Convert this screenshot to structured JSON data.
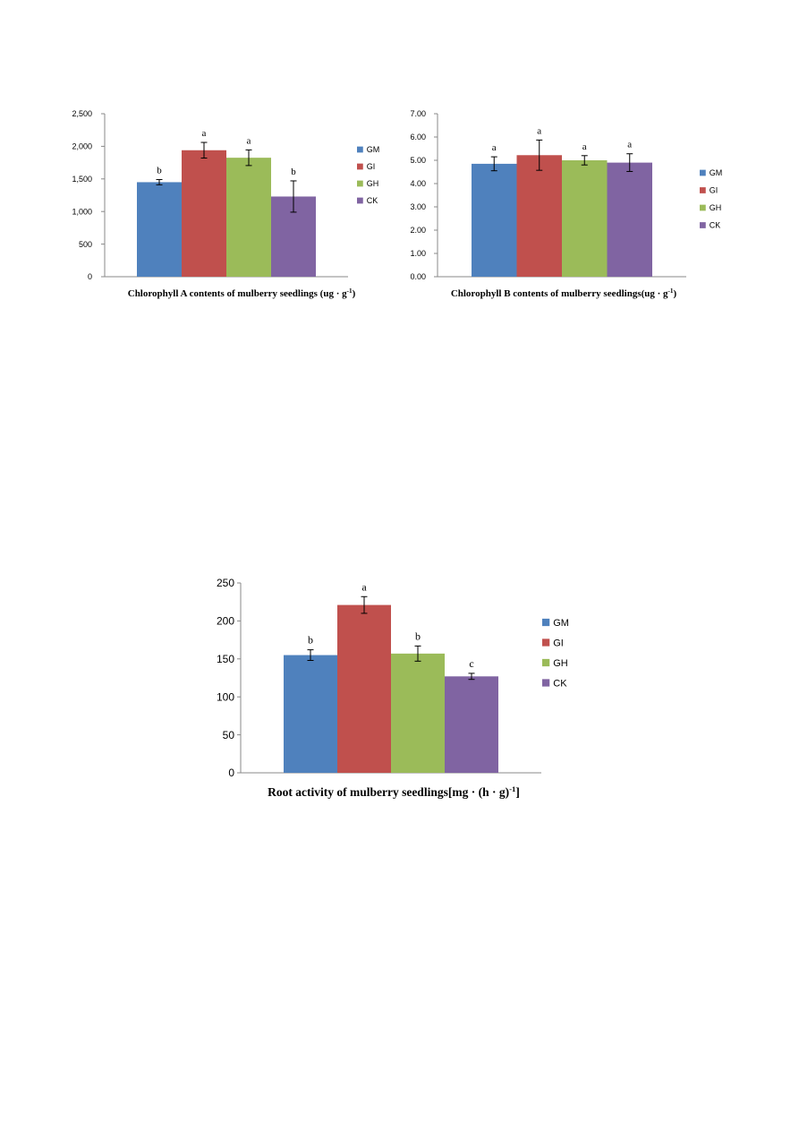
{
  "charts": [
    {
      "type": "bar",
      "title": "Chlorophyll A contents of mulberry seedlings (ug · g",
      "title_sup": "-1",
      "title_end": ")",
      "ylim": [
        0,
        2500
      ],
      "yticks": [
        0,
        500,
        1000,
        1500,
        2000,
        2500
      ],
      "ytick_labels": [
        "0",
        "500",
        "1,000",
        "1,500",
        "2,000",
        "2,500"
      ],
      "series": [
        {
          "name": "GM",
          "value": 1450,
          "error": 40,
          "letter": "b",
          "color": "#4f81bd"
        },
        {
          "name": "GI",
          "value": 1940,
          "error": 120,
          "letter": "a",
          "color": "#c0504d"
        },
        {
          "name": "GH",
          "value": 1825,
          "error": 120,
          "letter": "a",
          "color": "#9bbb59"
        },
        {
          "name": "CK",
          "value": 1230,
          "error": 240,
          "letter": "b",
          "color": "#8064a2"
        }
      ]
    },
    {
      "type": "bar",
      "title": "Chlorophyll B contents of mulberry seedlings(ug · g",
      "title_sup": "-1",
      "title_end": ")",
      "ylim": [
        0,
        7
      ],
      "yticks": [
        0,
        1,
        2,
        3,
        4,
        5,
        6,
        7
      ],
      "ytick_labels": [
        "0.00",
        "1.00",
        "2.00",
        "3.00",
        "4.00",
        "5.00",
        "6.00",
        "7.00"
      ],
      "series": [
        {
          "name": "GM",
          "value": 4.85,
          "error": 0.3,
          "letter": "a",
          "color": "#4f81bd"
        },
        {
          "name": "GI",
          "value": 5.22,
          "error": 0.65,
          "letter": "a",
          "color": "#c0504d"
        },
        {
          "name": "GH",
          "value": 5.0,
          "error": 0.2,
          "letter": "a",
          "color": "#9bbb59"
        },
        {
          "name": "CK",
          "value": 4.9,
          "error": 0.38,
          "letter": "a",
          "color": "#8064a2"
        }
      ]
    },
    {
      "type": "bar",
      "title": "Root activity of mulberry seedlings[mg · (h · g)",
      "title_sup": "-1",
      "title_end": "]",
      "ylim": [
        0,
        250
      ],
      "yticks": [
        0,
        50,
        100,
        150,
        200,
        250
      ],
      "ytick_labels": [
        "0",
        "50",
        "100",
        "150",
        "200",
        "250"
      ],
      "series": [
        {
          "name": "GM",
          "value": 155,
          "error": 7,
          "letter": "b",
          "color": "#4f81bd"
        },
        {
          "name": "GI",
          "value": 221,
          "error": 11,
          "letter": "a",
          "color": "#c0504d"
        },
        {
          "name": "GH",
          "value": 157,
          "error": 10,
          "letter": "b",
          "color": "#9bbb59"
        },
        {
          "name": "CK",
          "value": 127,
          "error": 4,
          "letter": "c",
          "color": "#8064a2"
        }
      ]
    }
  ]
}
